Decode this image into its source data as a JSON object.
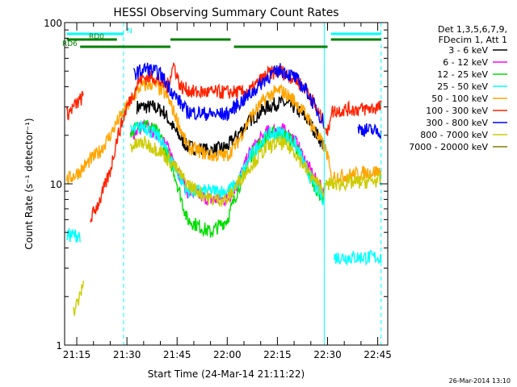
{
  "chart_data": {
    "type": "line",
    "title": "HESSI Observing Summary Count Rates",
    "xlabel": "Start Time (24-Mar-14 21:11:22)",
    "ylabel": "Count Rate (s⁻¹ detector⁻¹)",
    "y_scale": "log",
    "ylim": [
      1,
      100
    ],
    "xlim": [
      "21:11:22",
      "22:48:00"
    ],
    "y_ticks": [
      "1",
      "10",
      "100"
    ],
    "x_ticks": [
      "21:15",
      "21:30",
      "21:45",
      "22:00",
      "22:15",
      "22:30",
      "22:45"
    ],
    "grid": false,
    "legend_position": "right",
    "legend_header": [
      "Det 1,3,5,6,7,9,",
      "FDecim 1, Att 1"
    ],
    "timestamp": "26-Mar-2014 13:10",
    "series": [
      {
        "name": "3 - 6 keV",
        "color": "#000000",
        "points": [
          [
            "21:30",
            0
          ],
          [
            "21:33",
            30
          ],
          [
            "21:38",
            30
          ],
          [
            "21:41",
            28
          ],
          [
            "21:44",
            22
          ],
          [
            "21:48",
            17
          ],
          [
            "21:55",
            16
          ],
          [
            "22:00",
            17
          ],
          [
            "22:03",
            20
          ],
          [
            "22:07",
            25
          ],
          [
            "22:12",
            30
          ],
          [
            "22:16",
            32
          ],
          [
            "22:20",
            30
          ],
          [
            "22:24",
            25
          ],
          [
            "22:27",
            20
          ],
          [
            "22:29",
            17
          ],
          [
            "22:30",
            0
          ]
        ]
      },
      {
        "name": "6 - 12 keV",
        "color": "#ff00ff",
        "points": [
          [
            "21:30",
            0
          ],
          [
            "21:31",
            20
          ],
          [
            "21:35",
            23
          ],
          [
            "21:40",
            20
          ],
          [
            "21:44",
            14
          ],
          [
            "21:48",
            9
          ],
          [
            "21:55",
            8
          ],
          [
            "22:00",
            8
          ],
          [
            "22:03",
            10
          ],
          [
            "22:07",
            16
          ],
          [
            "22:12",
            21
          ],
          [
            "22:16",
            22
          ],
          [
            "22:20",
            19
          ],
          [
            "22:24",
            13
          ],
          [
            "22:27",
            10
          ],
          [
            "22:29",
            9
          ],
          [
            "22:30",
            0
          ]
        ]
      },
      {
        "name": "12 - 25 keV",
        "color": "#00dd00",
        "points": [
          [
            "21:30",
            0
          ],
          [
            "21:31",
            21
          ],
          [
            "21:35",
            24
          ],
          [
            "21:40",
            20
          ],
          [
            "21:44",
            12
          ],
          [
            "21:48",
            6
          ],
          [
            "21:55",
            5
          ],
          [
            "22:00",
            6
          ],
          [
            "22:03",
            9
          ],
          [
            "22:07",
            15
          ],
          [
            "22:12",
            20
          ],
          [
            "22:16",
            21
          ],
          [
            "22:20",
            18
          ],
          [
            "22:24",
            12
          ],
          [
            "22:27",
            9
          ],
          [
            "22:29",
            8
          ],
          [
            "22:30",
            0
          ]
        ]
      },
      {
        "name": "25 - 50 keV",
        "color": "#00ffff",
        "points": [
          [
            "21:12",
            4.8
          ],
          [
            "21:16",
            4.8
          ],
          [
            "21:16",
            0
          ],
          [
            "21:30",
            0
          ],
          [
            "21:31",
            21
          ],
          [
            "21:35",
            23
          ],
          [
            "21:40",
            19
          ],
          [
            "21:44",
            13
          ],
          [
            "21:48",
            9
          ],
          [
            "21:55",
            9
          ],
          [
            "22:00",
            9
          ],
          [
            "22:03",
            10
          ],
          [
            "22:07",
            15
          ],
          [
            "22:12",
            20
          ],
          [
            "22:16",
            21
          ],
          [
            "22:20",
            18
          ],
          [
            "22:24",
            12
          ],
          [
            "22:27",
            9
          ],
          [
            "22:29",
            8
          ],
          [
            "22:31",
            0
          ],
          [
            "22:32",
            3.5
          ],
          [
            "22:46",
            3.5
          ]
        ]
      },
      {
        "name": "50 - 100 keV",
        "color": "#ffa500",
        "points": [
          [
            "21:12",
            10.5
          ],
          [
            "21:16",
            12
          ],
          [
            "21:19",
            14
          ],
          [
            "21:22",
            16
          ],
          [
            "21:25",
            20
          ],
          [
            "21:27",
            24
          ],
          [
            "21:30",
            30
          ],
          [
            "21:34",
            40
          ],
          [
            "21:38",
            42
          ],
          [
            "21:42",
            35
          ],
          [
            "21:45",
            25
          ],
          [
            "21:48",
            17
          ],
          [
            "21:55",
            15
          ],
          [
            "22:00",
            15
          ],
          [
            "22:03",
            18
          ],
          [
            "22:07",
            26
          ],
          [
            "22:12",
            35
          ],
          [
            "22:16",
            38
          ],
          [
            "22:20",
            33
          ],
          [
            "22:24",
            26
          ],
          [
            "22:27",
            20
          ],
          [
            "22:29",
            17
          ],
          [
            "22:30",
            15
          ],
          [
            "22:31",
            11
          ],
          [
            "22:46",
            12
          ]
        ]
      },
      {
        "name": "100 - 300 keV",
        "color": "#ff2200",
        "points": [
          [
            "21:12",
            27
          ],
          [
            "21:16",
            33
          ],
          [
            "21:17",
            35
          ],
          [
            "21:18",
            0
          ],
          [
            "21:19",
            6
          ],
          [
            "21:22",
            8
          ],
          [
            "21:25",
            12
          ],
          [
            "21:27",
            19
          ],
          [
            "21:30",
            30
          ],
          [
            "21:34",
            45
          ],
          [
            "21:38",
            46
          ],
          [
            "21:42",
            40
          ],
          [
            "21:44",
            55
          ],
          [
            "21:46",
            40
          ],
          [
            "21:50",
            37
          ],
          [
            "21:55",
            37
          ],
          [
            "22:00",
            37
          ],
          [
            "22:05",
            37
          ],
          [
            "22:07",
            38
          ],
          [
            "22:12",
            48
          ],
          [
            "22:16",
            50
          ],
          [
            "22:20",
            45
          ],
          [
            "22:24",
            38
          ],
          [
            "22:27",
            28
          ],
          [
            "22:29",
            24
          ],
          [
            "22:30",
            20
          ],
          [
            "22:31",
            28
          ],
          [
            "22:36",
            29
          ],
          [
            "22:41",
            29
          ],
          [
            "22:46",
            30
          ]
        ]
      },
      {
        "name": "300 - 800 keV",
        "color": "#0000ff",
        "points": [
          [
            "21:30",
            0
          ],
          [
            "21:32",
            48
          ],
          [
            "21:36",
            52
          ],
          [
            "21:40",
            48
          ],
          [
            "21:44",
            36
          ],
          [
            "21:48",
            28
          ],
          [
            "21:55",
            27
          ],
          [
            "22:00",
            27
          ],
          [
            "22:03",
            31
          ],
          [
            "22:07",
            36
          ],
          [
            "22:12",
            46
          ],
          [
            "22:16",
            51
          ],
          [
            "22:20",
            46
          ],
          [
            "22:24",
            37
          ],
          [
            "22:27",
            28
          ],
          [
            "22:29",
            24
          ],
          [
            "22:30",
            0
          ],
          [
            "22:39",
            22
          ],
          [
            "22:46",
            21
          ]
        ]
      },
      {
        "name": "800 - 7000 keV",
        "color": "#cccc00",
        "points": [
          [
            "21:12",
            0
          ],
          [
            "21:14",
            1.6
          ],
          [
            "21:16",
            2.0
          ],
          [
            "21:17",
            2.5
          ],
          [
            "21:17",
            0
          ],
          [
            "21:30",
            0
          ],
          [
            "21:31",
            17
          ],
          [
            "21:35",
            18
          ],
          [
            "21:40",
            16
          ],
          [
            "21:44",
            13
          ],
          [
            "21:48",
            10
          ],
          [
            "21:55",
            8
          ],
          [
            "22:00",
            8
          ],
          [
            "22:03",
            10
          ],
          [
            "22:07",
            13
          ],
          [
            "22:12",
            17
          ],
          [
            "22:16",
            18
          ],
          [
            "22:20",
            16
          ],
          [
            "22:24",
            12
          ],
          [
            "22:27",
            10
          ],
          [
            "22:29",
            9
          ],
          [
            "22:30",
            10
          ],
          [
            "22:33",
            10
          ],
          [
            "22:46",
            10.5
          ]
        ]
      },
      {
        "name": "7000 - 20000 keV",
        "color": "#808000",
        "points": []
      }
    ],
    "annotations": [
      {
        "label": "N",
        "color": "#00ffff",
        "segments": [
          [
            "21:12",
            "21:29"
          ],
          [
            "22:31",
            "22:46"
          ]
        ]
      },
      {
        "label": "RD0",
        "color": "#008000",
        "segments": [
          [
            "21:12",
            "21:27"
          ],
          [
            "21:43",
            "22:01"
          ],
          [
            "22:31",
            "22:46"
          ]
        ]
      },
      {
        "label": "RD6",
        "color": "#008000",
        "segments": [
          [
            "21:16",
            "21:43"
          ],
          [
            "22:02",
            "22:30"
          ]
        ]
      }
    ],
    "vertical_lines": [
      {
        "time": "21:29",
        "color": "#00ffff",
        "style": "dashed"
      },
      {
        "time": "22:29",
        "color": "#00ffff",
        "style": "solid"
      },
      {
        "time": "22:46",
        "color": "#00ffff",
        "style": "dashed"
      }
    ]
  }
}
